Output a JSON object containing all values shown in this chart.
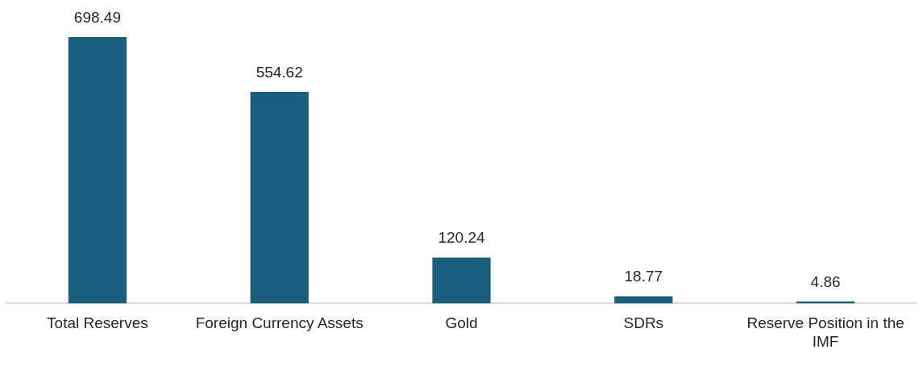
{
  "chart_data": {
    "type": "bar",
    "categories": [
      "Total Reserves",
      "Foreign Currency Assets",
      "Gold",
      "SDRs",
      "Reserve Position in the IMF"
    ],
    "values": [
      698.49,
      554.62,
      120.24,
      18.77,
      4.86
    ],
    "color": "#1a5f80",
    "data_labels": true,
    "grid": false,
    "legend": false
  }
}
